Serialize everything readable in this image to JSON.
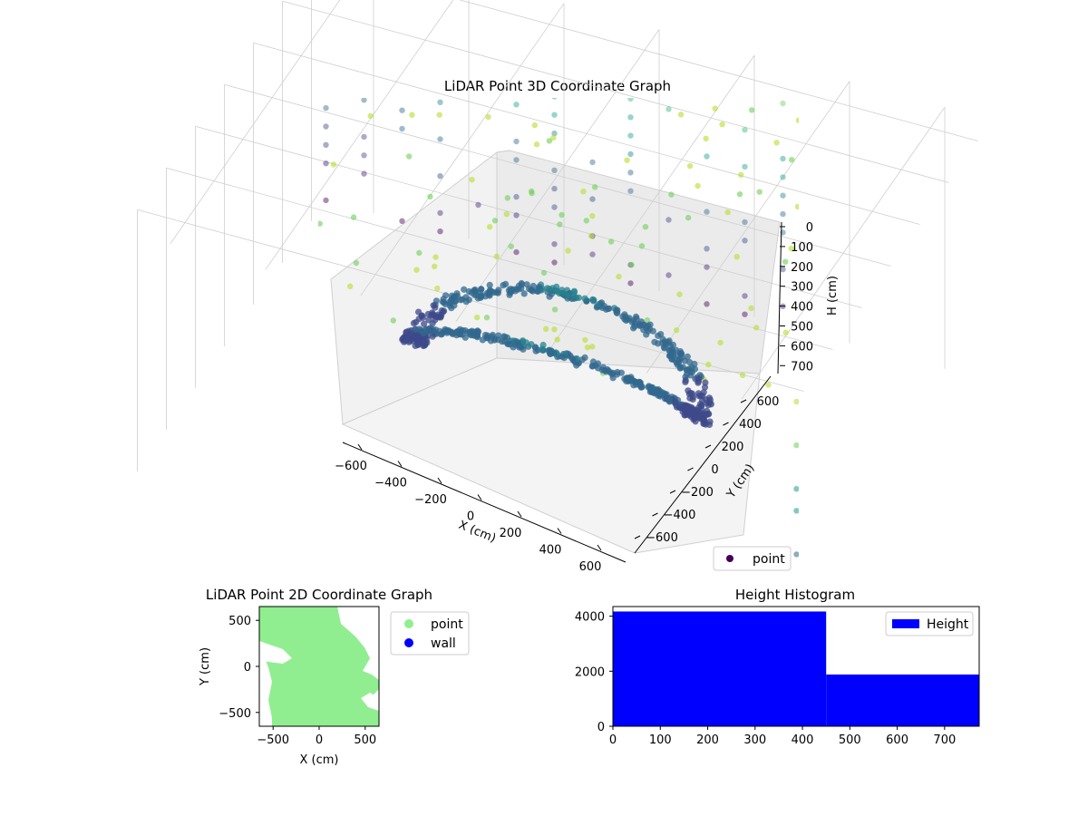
{
  "chart_data": [
    {
      "type": "scatter",
      "projection": "3d",
      "title": "LiDAR Point 3D Coordinate Graph",
      "xlabel": "X (cm)",
      "ylabel": "Y (cm)",
      "zlabel": "H (cm)",
      "xlim": [
        -700,
        700
      ],
      "ylim": [
        -700,
        700
      ],
      "zlim": [
        0,
        780
      ],
      "zaxis_inverted": true,
      "xticks": [
        "−600",
        "−400",
        "−200",
        "0",
        "200",
        "400",
        "600"
      ],
      "yticks": [
        "−600",
        "−400",
        "−200",
        "0",
        "200",
        "400",
        "600"
      ],
      "zticks": [
        "0",
        "100",
        "200",
        "300",
        "400",
        "500",
        "600",
        "700"
      ],
      "colormap": "viridis (colored by height)",
      "grid": true,
      "legend": {
        "location": "lower right",
        "entries": [
          {
            "label": "point",
            "color": "#440154"
          }
        ]
      },
      "series": [
        {
          "name": "point"
        }
      ]
    },
    {
      "type": "scatter",
      "title": "LiDAR Point 2D Coordinate Graph",
      "xlabel": "X (cm)",
      "ylabel": "Y (cm)",
      "xlim": [
        -650,
        650
      ],
      "ylim": [
        -650,
        650
      ],
      "xticks": [
        "−500",
        "0",
        "500"
      ],
      "yticks": [
        "500",
        "0",
        "−500"
      ],
      "legend": {
        "location": "outside right",
        "entries": [
          {
            "label": "point",
            "color": "#90ee90"
          },
          {
            "label": "wall",
            "color": "#0000ff"
          }
        ]
      },
      "series": [
        {
          "name": "point",
          "color": "#90ee90"
        },
        {
          "name": "wall",
          "color": "#0000ff"
        }
      ]
    },
    {
      "type": "bar",
      "subtype": "histogram",
      "title": "Height Histogram",
      "xlim": [
        0,
        773
      ],
      "ylim": [
        0,
        4350
      ],
      "xticks": [
        "0",
        "100",
        "200",
        "300",
        "400",
        "500",
        "600",
        "700"
      ],
      "yticks": [
        "0",
        "2000",
        "4000"
      ],
      "bins": [
        {
          "start": 0,
          "end": 450,
          "count": 4170
        },
        {
          "start": 450,
          "end": 773,
          "count": 1880
        }
      ],
      "color": "#0000ff",
      "legend": {
        "location": "upper right",
        "entries": [
          {
            "label": "Height",
            "color": "#0000ff"
          }
        ]
      },
      "series": [
        {
          "name": "Height",
          "values": [
            4170,
            1880
          ]
        }
      ]
    }
  ]
}
